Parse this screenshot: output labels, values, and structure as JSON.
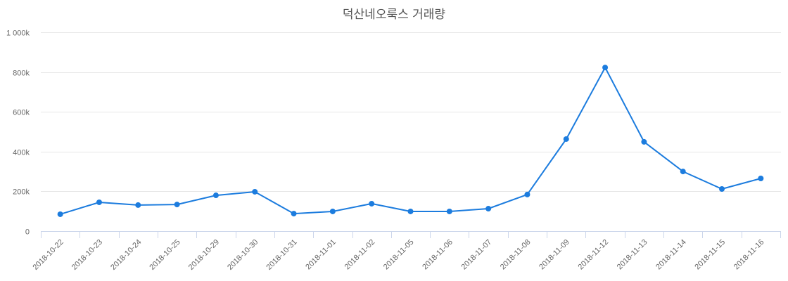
{
  "chart_data": {
    "type": "line",
    "title": "덕산네오룩스 거래량",
    "xlabel": "",
    "ylabel": "",
    "ylim": [
      0,
      1000000
    ],
    "yticks": [
      0,
      200000,
      400000,
      600000,
      800000,
      1000000
    ],
    "ytick_labels": [
      "0",
      "200k",
      "400k",
      "600k",
      "800k",
      "1 000k"
    ],
    "grid": true,
    "legend": null,
    "categories": [
      "2018-10-22",
      "2018-10-23",
      "2018-10-24",
      "2018-10-25",
      "2018-10-29",
      "2018-10-30",
      "2018-10-31",
      "2018-11-01",
      "2018-11-02",
      "2018-11-05",
      "2018-11-06",
      "2018-11-07",
      "2018-11-08",
      "2018-11-09",
      "2018-11-12",
      "2018-11-13",
      "2018-11-14",
      "2018-11-15",
      "2018-11-16"
    ],
    "series": [
      {
        "name": "거래량",
        "color": "#1c7cde",
        "values": [
          85000,
          145000,
          131000,
          134000,
          180000,
          198000,
          88000,
          99000,
          138000,
          99000,
          99000,
          113000,
          184000,
          463000,
          823000,
          449000,
          300000,
          212000,
          265000
        ]
      }
    ]
  },
  "colors": {
    "line": "#1c7cde",
    "grid": "#e6e6e6",
    "axis": "#ccd6eb",
    "label": "#666666",
    "title": "#555555"
  }
}
